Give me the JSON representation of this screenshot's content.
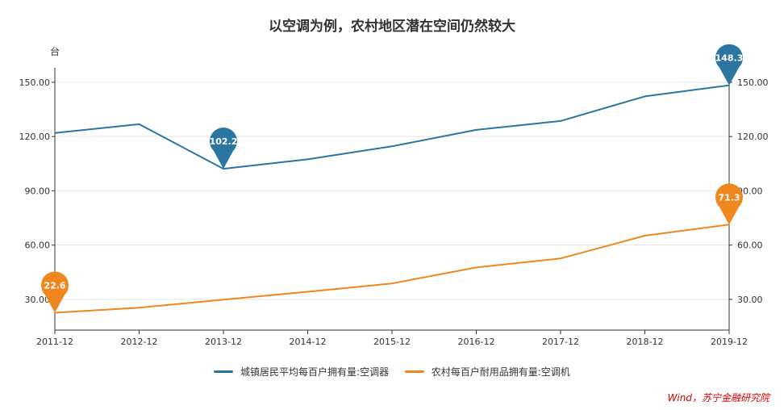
{
  "chart_data": {
    "type": "line",
    "title": "以空调为例，农村地区潜在空间仍然较大",
    "unit_label": "台",
    "x": [
      "2011-12",
      "2012-12",
      "2013-12",
      "2014-12",
      "2015-12",
      "2016-12",
      "2017-12",
      "2018-12",
      "2019-12"
    ],
    "y_ticks": [
      "30.00",
      "60.00",
      "90.00",
      "120.00",
      "150.00"
    ],
    "ylim": [
      13,
      158
    ],
    "grid": true,
    "legend_position": "bottom",
    "series": [
      {
        "name": "城镇居民平均每百户拥有量:空调器",
        "color": "#2a76a1",
        "values": [
          122.0,
          126.8,
          102.2,
          107.4,
          114.6,
          123.7,
          128.6,
          142.2,
          148.3
        ],
        "markers": [
          {
            "index": 2,
            "label": "102.2"
          },
          {
            "index": 8,
            "label": "148.3"
          }
        ]
      },
      {
        "name": "农村每百户耐用品拥有量:空调机",
        "color": "#f0861e",
        "values": [
          22.6,
          25.4,
          29.8,
          34.2,
          38.8,
          47.6,
          52.6,
          65.2,
          71.3
        ],
        "markers": [
          {
            "index": 0,
            "label": "22.6"
          },
          {
            "index": 8,
            "label": "71.3"
          }
        ]
      }
    ]
  },
  "source": "Wind，苏宁金融研究院"
}
